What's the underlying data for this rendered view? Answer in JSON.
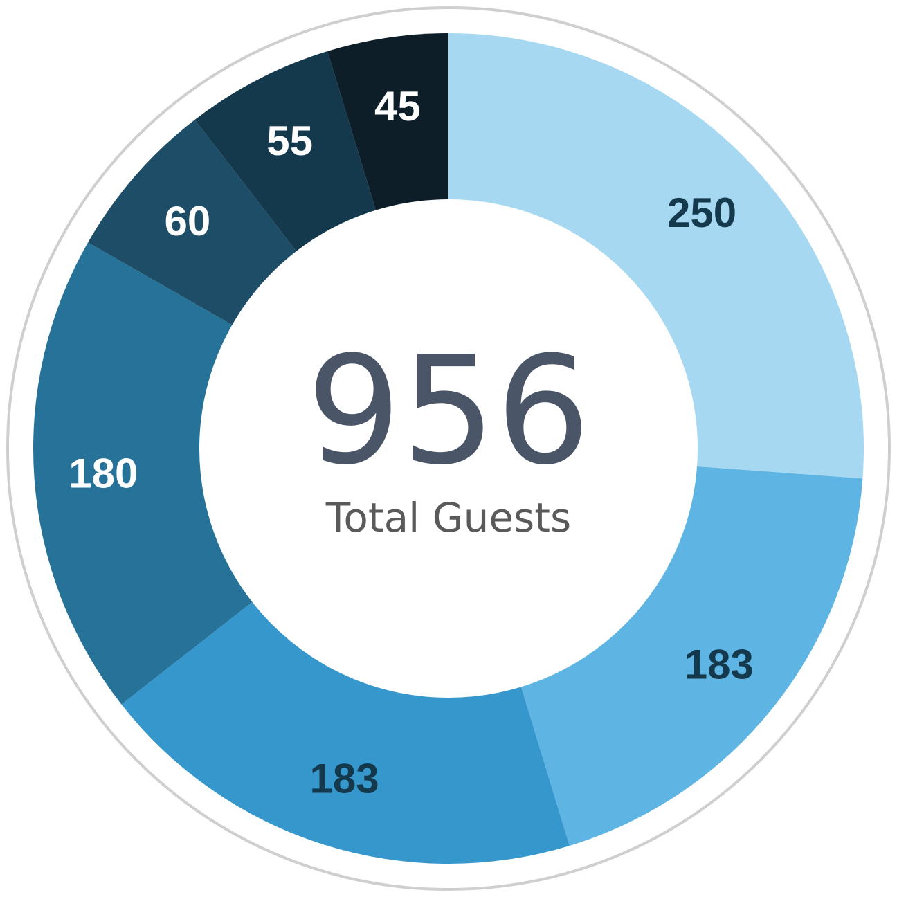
{
  "chart_data": {
    "type": "pie",
    "title": "",
    "total": "956",
    "total_caption": "Total Guests",
    "values": [
      250,
      183,
      183,
      180,
      60,
      55,
      45
    ],
    "labels": [
      "250",
      "183",
      "183",
      "180",
      "60",
      "55",
      "45"
    ],
    "colors": [
      "#a6d8f1",
      "#5eb5e4",
      "#3597cc",
      "#267298",
      "#1e4e67",
      "#15394c",
      "#0d1e28"
    ],
    "label_colors": [
      "#15394c",
      "#15394c",
      "#15394c",
      "#ffffff",
      "#ffffff",
      "#ffffff",
      "#ffffff"
    ]
  }
}
